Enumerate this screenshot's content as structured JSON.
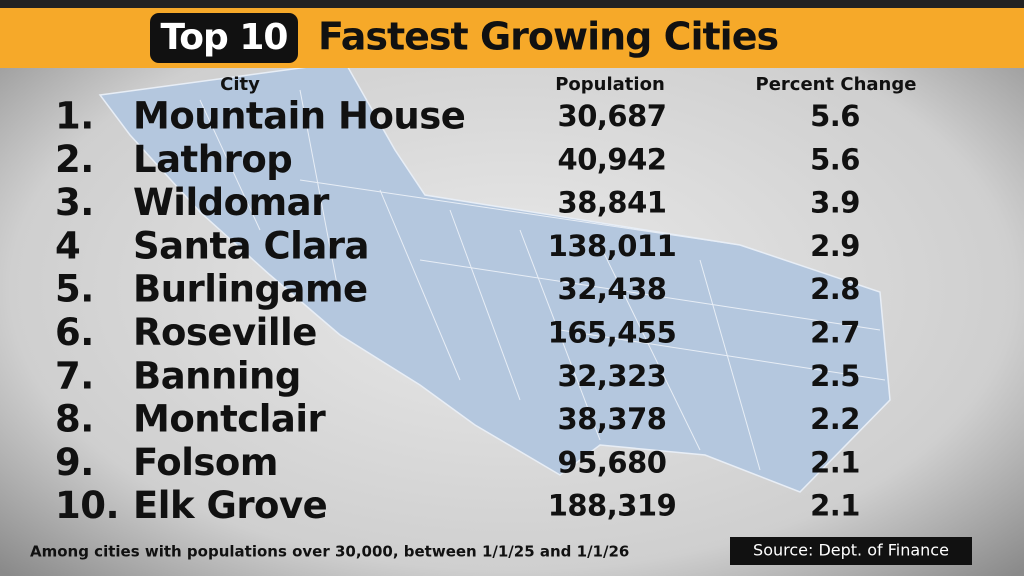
{
  "header": {
    "badge": "Top 10",
    "title": "Fastest Growing Cities"
  },
  "table": {
    "columns": [
      "City",
      "Population",
      "Percent Change"
    ],
    "rows": [
      {
        "rank": "1.",
        "city": "Mountain House",
        "population": "30,687",
        "percent_change": "5.6"
      },
      {
        "rank": "2.",
        "city": "Lathrop",
        "population": "40,942",
        "percent_change": "5.6"
      },
      {
        "rank": "3.",
        "city": "Wildomar",
        "population": "38,841",
        "percent_change": "3.9"
      },
      {
        "rank": "4",
        "city": "Santa Clara",
        "population": "138,011",
        "percent_change": "2.9"
      },
      {
        "rank": "5.",
        "city": "Burlingame",
        "population": "32,438",
        "percent_change": "2.8"
      },
      {
        "rank": "6.",
        "city": "Roseville",
        "population": "165,455",
        "percent_change": "2.7"
      },
      {
        "rank": "7.",
        "city": "Banning",
        "population": "32,323",
        "percent_change": "2.5"
      },
      {
        "rank": "8.",
        "city": "Montclair",
        "population": "38,378",
        "percent_change": "2.2"
      },
      {
        "rank": "9.",
        "city": "Folsom",
        "population": "95,680",
        "percent_change": "2.1"
      },
      {
        "rank": "10.",
        "city": "Elk Grove",
        "population": "188,319",
        "percent_change": "2.1"
      }
    ]
  },
  "footer": {
    "note": "Among cities with populations over 30,000, between 1/1/25 and 1/1/26",
    "source": "Source: Dept. of Finance"
  }
}
